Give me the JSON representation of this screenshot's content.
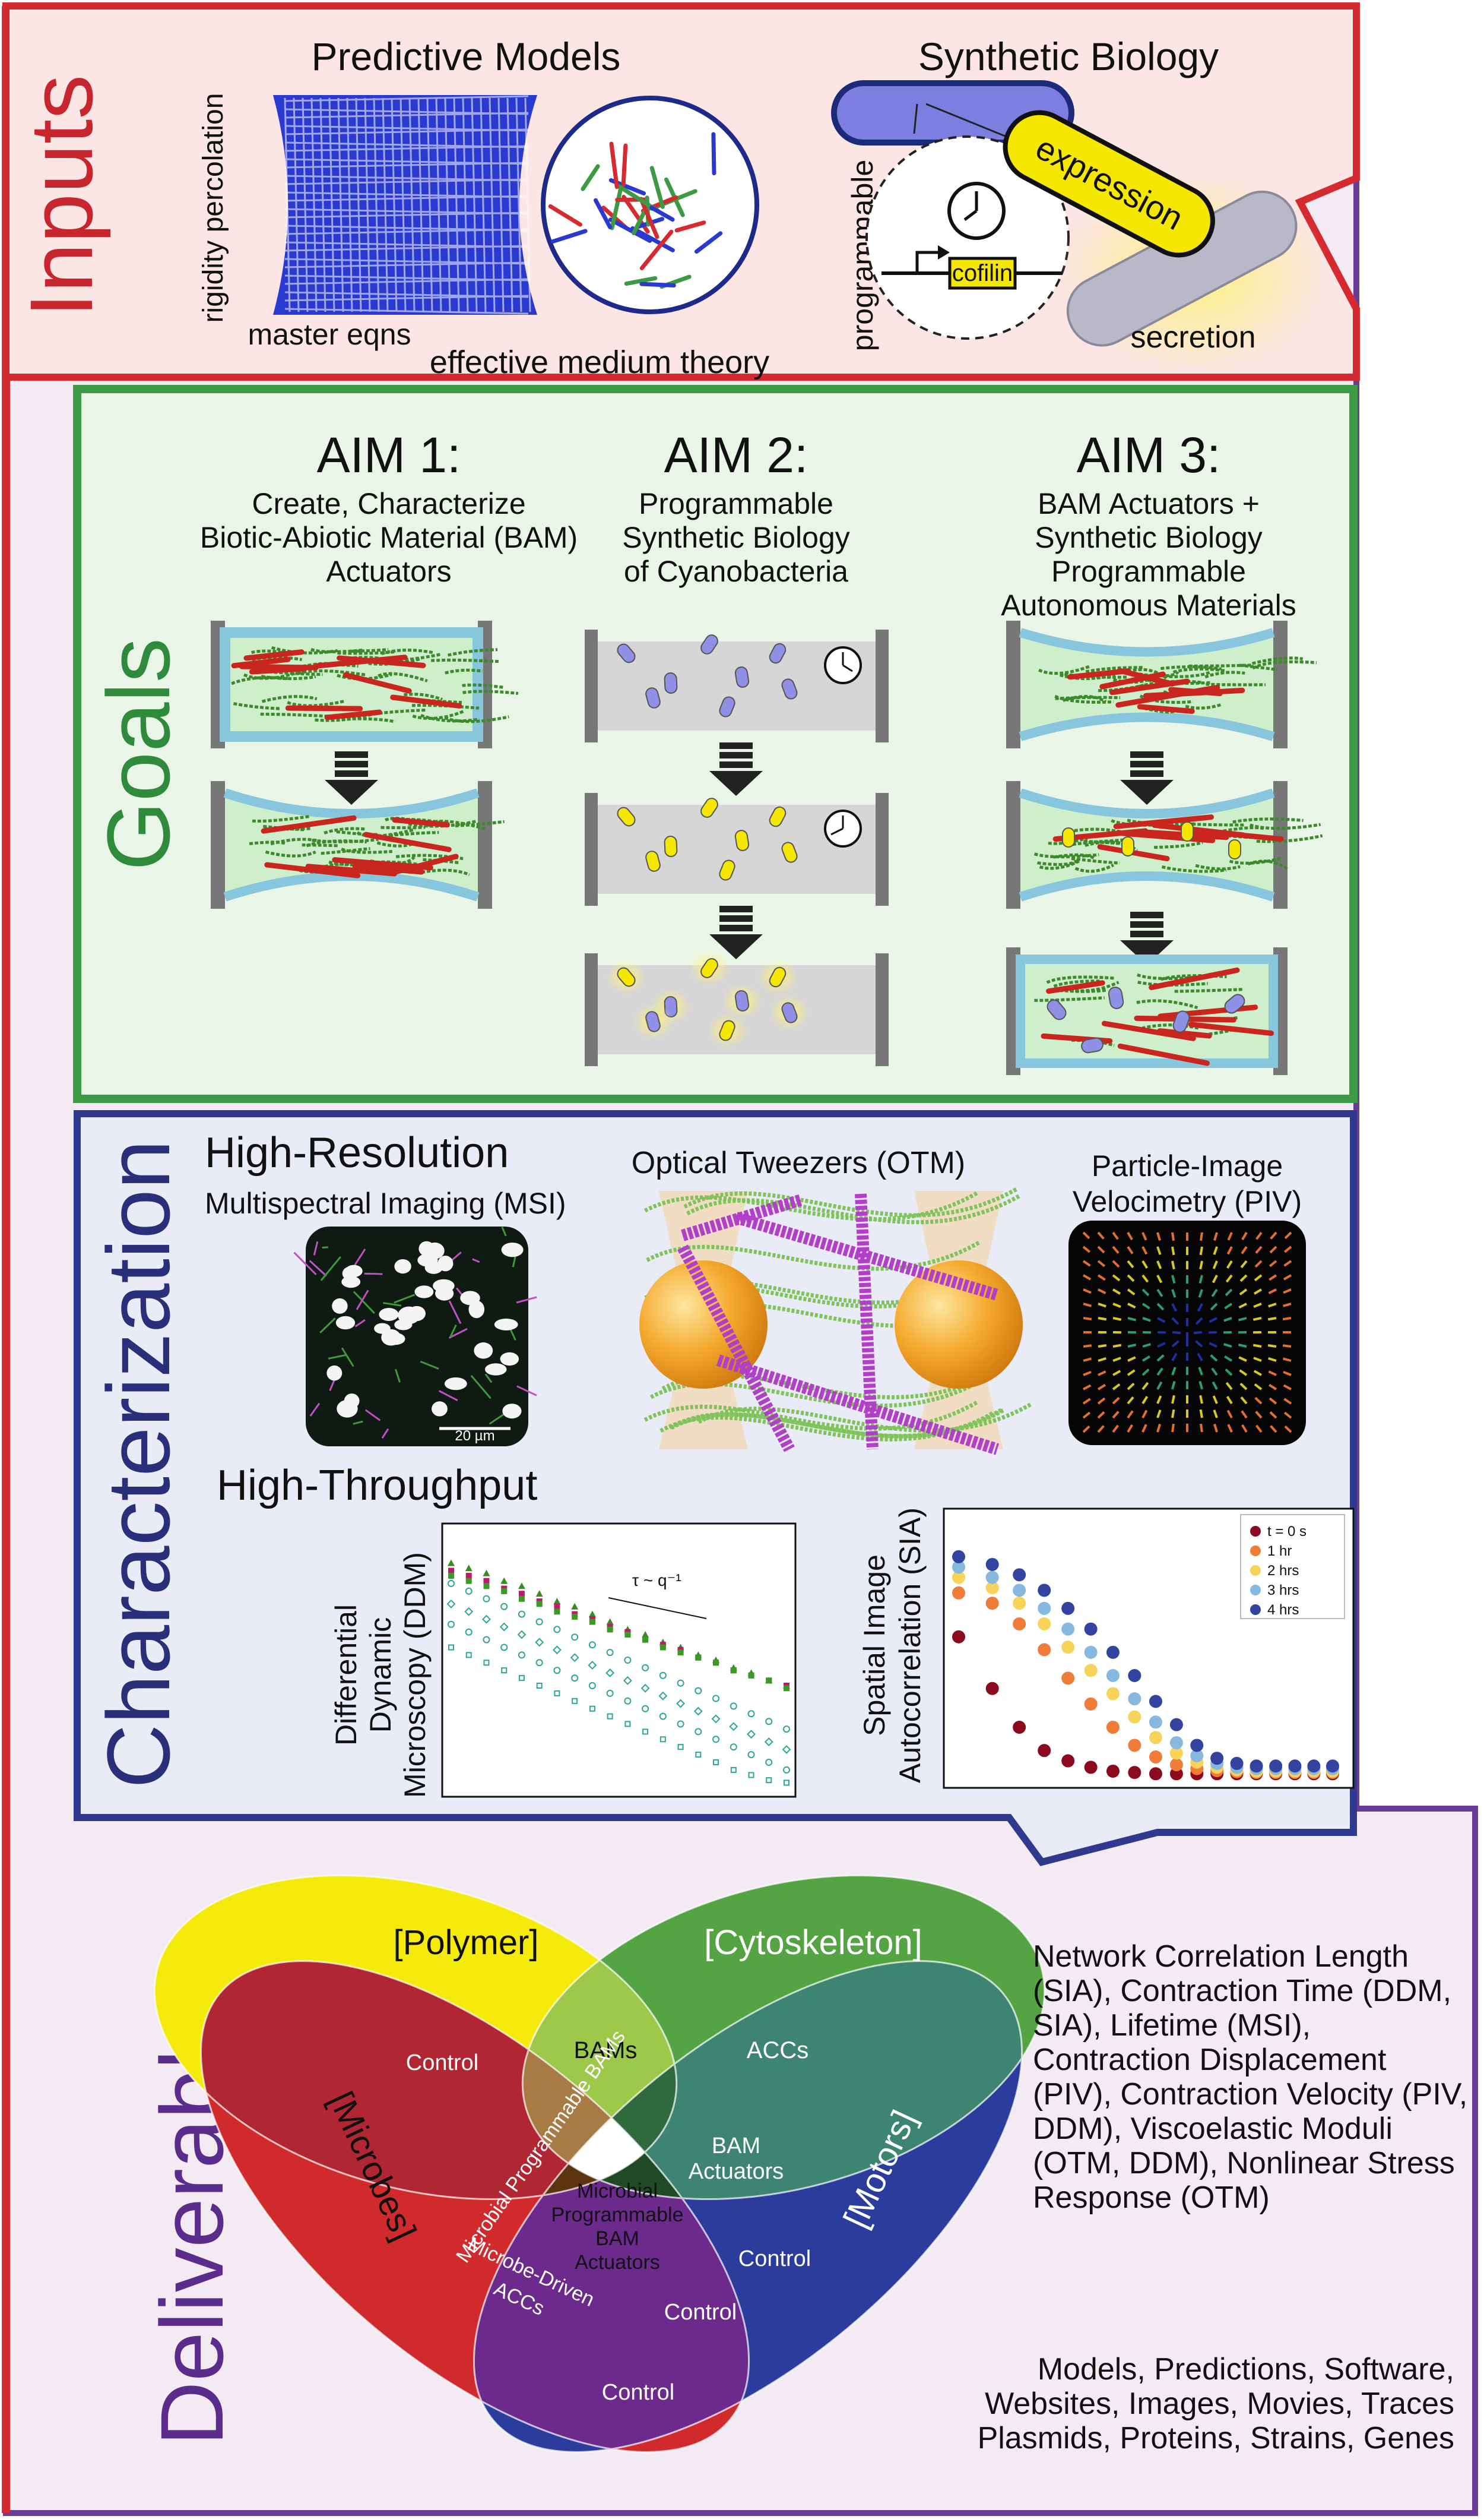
{
  "colors": {
    "inputs_border": "#d42a30",
    "inputs_bg": "#fbe6e5",
    "outer_purple": "#6a3c9a",
    "goals_border": "#3c9a45",
    "goals_bg": "#e9f6e7",
    "characterization_border": "#2f3a8f",
    "characterization_bg": "#e9ebf6",
    "deliverables_bg": "#efe5f2",
    "venn_polymer": "#f4ea0c",
    "venn_cytoskeleton": "#55a444",
    "venn_microbes": "#d02a2c",
    "venn_motors": "#2c3c9c"
  },
  "inputs": {
    "section_label": "Inputs",
    "predictive_models": {
      "title": "Predictive Models",
      "label_rigidity": "rigidity percolation",
      "label_master": "master eqns",
      "label_emt": "effective medium theory"
    },
    "synthetic_biology": {
      "title": "Synthetic Biology",
      "label_programmable": "programmable",
      "label_expression": "expression",
      "label_cofilin": "cofilin",
      "label_secretion": "secretion"
    }
  },
  "goals": {
    "section_label": "Goals",
    "aim1": {
      "title": "AIM 1:",
      "line1": "Create, Characterize",
      "line2": "Biotic-Abiotic Material (BAM)",
      "line3": "Actuators"
    },
    "aim2": {
      "title": "AIM 2:",
      "line1": "Programmable",
      "line2": "Synthetic Biology",
      "line3": "of Cyanobacteria"
    },
    "aim3": {
      "title": "AIM 3:",
      "line1": "BAM Actuators +",
      "line2": "Synthetic Biology",
      "line3": "Programmable",
      "line4": "Autonomous Materials"
    }
  },
  "characterization": {
    "section_label": "Characterization",
    "high_resolution": "High-Resolution",
    "msi_label": "Multispectral Imaging (MSI)",
    "msi_scalebar": "20 µm",
    "otm_label": "Optical Tweezers (OTM)",
    "piv_label1": "Particle-Image",
    "piv_label2": "Velocimetry (PIV)",
    "high_throughput": "High-Throughput",
    "ddm_label1": "Differential",
    "ddm_label2": "Dynamic",
    "ddm_label3": "Microscopy (DDM)",
    "ddm_annotation": "τ ~ q⁻¹",
    "sia_label1": "Spatial Image",
    "sia_label2": "Autocorrelation (SIA)"
  },
  "chart_data": [
    {
      "type": "scatter",
      "title": "",
      "xlabel": "",
      "ylabel": "Differential Dynamic Microscopy (DDM)",
      "annotations": [
        "τ ~ q⁻¹"
      ],
      "grid": false,
      "series": [
        {
          "marker": "triangle",
          "color": "#3a8a25",
          "y": [
            0.88,
            0.86,
            0.84,
            0.81,
            0.79,
            0.76,
            0.73,
            0.71,
            0.68,
            0.65,
            0.62,
            0.6,
            0.57,
            0.55,
            0.52,
            0.5,
            0.47,
            0.45,
            0.42,
            0.4
          ]
        },
        {
          "marker": "square",
          "color": "#c0186a",
          "y": [
            0.85,
            0.83,
            0.81,
            0.78,
            0.76,
            0.73,
            0.71,
            0.68,
            0.66,
            0.63,
            0.61,
            0.58,
            0.56,
            0.54,
            0.51,
            0.49,
            0.46,
            0.44,
            0.42,
            0.4
          ]
        },
        {
          "marker": "square",
          "color": "#3a9a25",
          "y": [
            0.83,
            0.81,
            0.79,
            0.77,
            0.74,
            0.72,
            0.69,
            0.67,
            0.65,
            0.62,
            0.6,
            0.58,
            0.55,
            0.53,
            0.51,
            0.49,
            0.46,
            0.44,
            0.42,
            0.39
          ]
        },
        {
          "marker": "open-circle",
          "color": "#2aa59a",
          "y": [
            0.8,
            0.77,
            0.74,
            0.71,
            0.68,
            0.65,
            0.62,
            0.59,
            0.56,
            0.53,
            0.5,
            0.47,
            0.44,
            0.41,
            0.38,
            0.35,
            0.32,
            0.29,
            0.26,
            0.23
          ]
        },
        {
          "marker": "open-diamond",
          "color": "#2aa59a",
          "y": [
            0.72,
            0.69,
            0.66,
            0.63,
            0.6,
            0.57,
            0.54,
            0.51,
            0.48,
            0.45,
            0.42,
            0.39,
            0.36,
            0.33,
            0.3,
            0.27,
            0.24,
            0.21,
            0.18,
            0.15
          ]
        },
        {
          "marker": "open-circle",
          "color": "#2aa59a",
          "y": [
            0.64,
            0.61,
            0.58,
            0.55,
            0.52,
            0.49,
            0.46,
            0.43,
            0.4,
            0.37,
            0.34,
            0.31,
            0.28,
            0.25,
            0.22,
            0.19,
            0.16,
            0.13,
            0.1,
            0.07
          ]
        },
        {
          "marker": "open-square",
          "color": "#2aa59a",
          "y": [
            0.55,
            0.52,
            0.49,
            0.46,
            0.43,
            0.4,
            0.37,
            0.34,
            0.31,
            0.28,
            0.25,
            0.22,
            0.19,
            0.16,
            0.13,
            0.1,
            0.07,
            0.05,
            0.03,
            0.02
          ]
        }
      ]
    },
    {
      "type": "scatter",
      "title": "",
      "xlabel": "",
      "ylabel": "Spatial Image Autocorrelation (SIA)",
      "legend_position": "top-right",
      "grid": false,
      "series": [
        {
          "name": "t = 0 s",
          "color": "#8b0a1e",
          "y": [
            0.55,
            0.35,
            0.2,
            0.11,
            0.07,
            0.045,
            0.03,
            0.025,
            0.02,
            0.02,
            0.02,
            0.02,
            0.02,
            0.02,
            0.02,
            0.02,
            0.02,
            0.02
          ]
        },
        {
          "name": "1 hr",
          "color": "#f07c3a",
          "y": [
            0.72,
            0.68,
            0.6,
            0.5,
            0.39,
            0.29,
            0.2,
            0.13,
            0.085,
            0.055,
            0.04,
            0.032,
            0.028,
            0.025,
            0.025,
            0.025,
            0.025,
            0.025
          ]
        },
        {
          "name": "2 hrs",
          "color": "#f8d35a",
          "y": [
            0.78,
            0.74,
            0.68,
            0.6,
            0.51,
            0.42,
            0.33,
            0.24,
            0.16,
            0.1,
            0.065,
            0.045,
            0.035,
            0.03,
            0.03,
            0.03,
            0.03,
            0.03
          ]
        },
        {
          "name": "3 hrs",
          "color": "#86b8e0",
          "y": [
            0.82,
            0.78,
            0.73,
            0.66,
            0.58,
            0.49,
            0.4,
            0.31,
            0.22,
            0.14,
            0.09,
            0.06,
            0.045,
            0.04,
            0.04,
            0.04,
            0.04,
            0.04
          ]
        },
        {
          "name": "4 hrs",
          "color": "#3344a0",
          "y": [
            0.86,
            0.83,
            0.79,
            0.73,
            0.66,
            0.58,
            0.49,
            0.4,
            0.3,
            0.21,
            0.13,
            0.08,
            0.06,
            0.05,
            0.05,
            0.05,
            0.05,
            0.05
          ]
        }
      ]
    }
  ],
  "deliverables": {
    "section_label": "Deliverables",
    "venn": {
      "polymer": "[Polymer]",
      "cytoskeleton": "[Cytoskeleton]",
      "microbes": "[Microbes]",
      "motors": "[Motors]",
      "control_top_left": "Control",
      "bams": "BAMs",
      "accs": "ACCs",
      "microbial_programmable_bams": "Microbial Programmable BAMs",
      "bam_actuators_1": "BAM",
      "bam_actuators_2": "Actuators",
      "center_1": "Microbial",
      "center_2": "Programmable",
      "center_3": "BAM",
      "center_4": "Actuators",
      "microbe_driven_accs_1": "Microbe-Driven",
      "microbe_driven_accs_2": "ACCs",
      "control_right": "Control",
      "control_center_bottom": "Control",
      "control_bottom": "Control"
    },
    "metrics_text": "Network Correlation Length (SIA), Contraction Time (DDM, SIA), Lifetime (MSI), Contraction Displacement (PIV), Contraction Velocity (PIV, DDM), Viscoelastic Moduli (OTM, DDM), Nonlinear Stress Response (OTM)",
    "outputs_line1": "Models, Predictions, Software,",
    "outputs_line2": "Websites, Images, Movies, Traces",
    "outputs_line3": "Plasmids, Proteins, Strains, Genes"
  }
}
